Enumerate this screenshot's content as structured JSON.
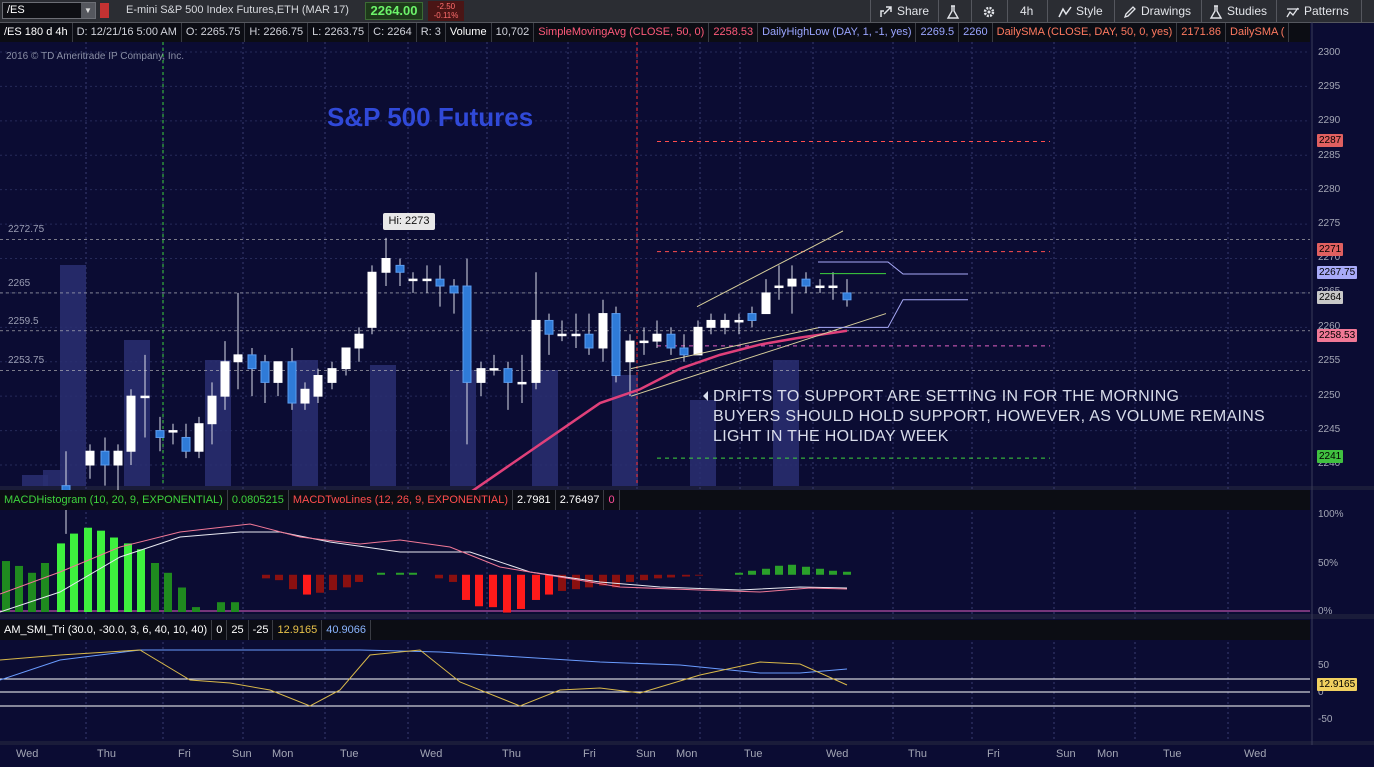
{
  "toolbar": {
    "symbol": "/ES",
    "instrument": "E-mini S&P 500 Index Futures,ETH (MAR 17)",
    "last_price": "2264.00",
    "change": "-2.50",
    "change_pct": "-0.11%",
    "share_label": "Share",
    "timeframe": "4h",
    "style_label": "Style",
    "drawings_label": "Drawings",
    "studies_label": "Studies",
    "patterns_label": "Patterns"
  },
  "infobar": {
    "period": "/ES 180 d 4h",
    "date": "D: 12/21/16 5:00 AM",
    "open": "O: 2265.75",
    "high": "H: 2266.75",
    "low": "L: 2263.75",
    "close": "C: 2264",
    "range": "R: 3",
    "volume_label": "Volume",
    "volume_value": "10,702",
    "sma_label": "SimpleMovingAvg (CLOSE, 50, 0)",
    "sma_value": "2258.53",
    "dhl_label": "DailyHighLow (DAY, 1, -1, yes)",
    "dhl_high": "2269.5",
    "dhl_low": "2260",
    "dsma_label": "DailySMA (CLOSE, DAY, 50, 0, yes)",
    "dsma_value": "2171.86",
    "dsma2_label": "DailySMA ("
  },
  "chart": {
    "copyright": "2016 © TD Ameritrade IP Company, Inc.",
    "title": "S&P 500 Futures",
    "hi_label": "Hi: 2273",
    "annotation_lines": [
      "DRIFTS TO SUPPORT ARE SETTING IN FOR THE MORNING",
      "BUYERS SHOULD HOLD SUPPORT, HOWEVER, AS VOLUME REMAINS",
      "LIGHT IN THE HOLIDAY WEEK"
    ],
    "level_labels": [
      "2272.75",
      "2265",
      "2259.5",
      "2253.75"
    ],
    "y_ticks": [
      "2300",
      "2295",
      "2290",
      "2285",
      "2280",
      "2275",
      "2270",
      "2265",
      "2260",
      "2255",
      "2250",
      "2245",
      "2240"
    ],
    "badges": {
      "b2287": "2287",
      "b2271": "2271",
      "b2267": "2267.75",
      "b2264": "2264",
      "b2258": "2258.53",
      "b2241": "2241"
    },
    "colors": {
      "up": "#ffffff",
      "down": "#2f7bd8",
      "sma": "#e0407a",
      "volume": "#2a2f72",
      "resistance": "#ff4d4d",
      "support": "#3ed43e"
    }
  },
  "macd": {
    "hist_label": "MACDHistogram (10, 20, 9, EXPONENTIAL)",
    "hist_value": "0.0805215",
    "two_label": "MACDTwoLines (12, 26, 9, EXPONENTIAL)",
    "two_v1": "2.7981",
    "two_v2": "2.76497",
    "two_v3": "0",
    "ticks": [
      "100%",
      "50%",
      "0%"
    ]
  },
  "smi": {
    "label": "AM_SMI_Tri (30.0, -30.0, 3, 6, 40, 10, 40)",
    "v0": "0",
    "v1": "25",
    "v2": "-25",
    "v3": "12.9165",
    "v4": "40.9066",
    "ticks": [
      "50",
      "0",
      "-50"
    ],
    "badge": "12.9165"
  },
  "xaxis": [
    "Wed",
    "Thu",
    "Fri",
    "Sun",
    "Mon",
    "Tue",
    "Wed",
    "Thu",
    "Fri",
    "Sun",
    "Mon",
    "Tue",
    "Wed",
    "Thu",
    "Fri",
    "Sun",
    "Mon",
    "Tue",
    "Wed"
  ]
}
